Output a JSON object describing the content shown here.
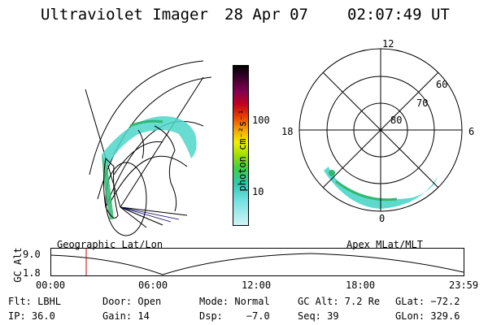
{
  "header": {
    "title": "Ultraviolet Imager",
    "date": "28 Apr 07",
    "time": "02:07:49 UT"
  },
  "colorbar": {
    "unit_label": "photon cm⁻²s⁻¹",
    "tick_100": "100",
    "tick_10": "10"
  },
  "polar_plot": {
    "mlt_top": "12",
    "mlt_left": "18",
    "mlt_right": "6",
    "mlt_bottom": "0",
    "lat_60": "60",
    "lat_70": "70",
    "lat_80": "80"
  },
  "altitude_panel": {
    "left_label": "Geographic Lat/Lon",
    "right_label": "Apex MLat/MLT",
    "axis_title": "GC Alt",
    "y_top": "9.0",
    "y_bottom": "1.8",
    "x_ticks": [
      "00:00",
      "06:00",
      "12:00",
      "18:00",
      "23:59"
    ]
  },
  "footer": {
    "filter": "Flt: LBHL",
    "door": "Door: Open",
    "mode": "Mode: Normal",
    "gc_alt": "GC Alt: 7.2 Re",
    "glat": "GLat: −72.2",
    "ip": "IP: 36.0",
    "gain": "Gain: 14",
    "dsp": "Dsp:    −7.0",
    "seq": "Seq: 39",
    "glon": "GLon: 329.6"
  },
  "colors": {
    "aurora_cyan": "#4dd6c8",
    "aurora_green": "#2fb870",
    "cursor_red": "#cc0000"
  }
}
